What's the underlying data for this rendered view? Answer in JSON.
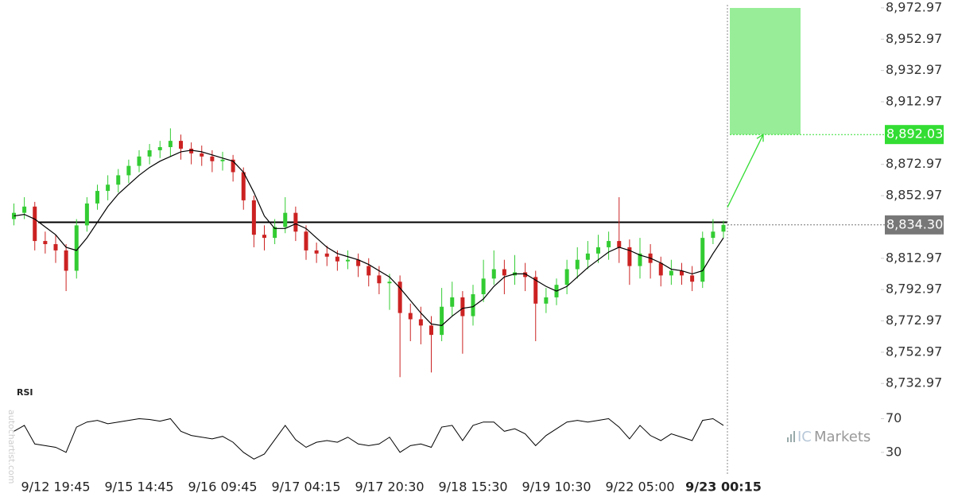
{
  "chart_data": {
    "type": "candlestick",
    "categories": [
      null,
      null,
      null,
      null,
      "9/12 19:45",
      null,
      null,
      null,
      null,
      null,
      null,
      null,
      "9/15 14:45",
      null,
      null,
      null,
      null,
      null,
      null,
      null,
      "9/16 09:45",
      null,
      null,
      null,
      null,
      null,
      null,
      null,
      "9/17 04:15",
      null,
      null,
      null,
      null,
      null,
      null,
      null,
      "9/17 20:30",
      null,
      null,
      null,
      null,
      null,
      null,
      null,
      "9/18 15:30",
      null,
      null,
      null,
      null,
      null,
      null,
      null,
      "9/19 10:30",
      null,
      null,
      null,
      null,
      null,
      null,
      null,
      "9/22 05:00",
      null,
      null,
      null,
      null,
      null,
      null,
      null,
      "9/23 00:15"
    ],
    "open": [
      8838,
      8842,
      8846,
      8824,
      8822,
      8818,
      8805,
      8834,
      8848,
      8856,
      8860,
      8866,
      8872,
      8878,
      8882,
      8884,
      8888,
      8883,
      8880,
      8878,
      8875,
      8876,
      8868,
      8850,
      8828,
      8826,
      8833,
      8842,
      8830,
      8818,
      8816,
      8814,
      8811,
      8812,
      8808,
      8802,
      8797,
      8798,
      8778,
      8774,
      8770,
      8764,
      8782,
      8788,
      8776,
      8790,
      8800,
      8806,
      8802,
      8804,
      8801,
      8784,
      8788,
      8796,
      8806,
      8812,
      8816,
      8820,
      8824,
      8820,
      8808,
      8816,
      8810,
      8802,
      8805,
      8802,
      8798,
      8826,
      8830
    ],
    "high": [
      8848,
      8852,
      8849,
      8830,
      8828,
      8822,
      8838,
      8852,
      8860,
      8866,
      8870,
      8876,
      8882,
      8886,
      8888,
      8896,
      8892,
      8887,
      8885,
      8882,
      8881,
      8879,
      8871,
      8853,
      8834,
      8838,
      8852,
      8846,
      8834,
      8823,
      8821,
      8818,
      8818,
      8816,
      8813,
      8808,
      8803,
      8802,
      8784,
      8782,
      8776,
      8794,
      8798,
      8792,
      8796,
      8812,
      8818,
      8812,
      8815,
      8810,
      8805,
      8794,
      8800,
      8812,
      8820,
      8824,
      8828,
      8830,
      8852,
      8825,
      8826,
      8822,
      8814,
      8812,
      8810,
      8808,
      8830,
      8838,
      8837
    ],
    "low": [
      8834,
      8838,
      8818,
      8816,
      8810,
      8792,
      8800,
      8830,
      8844,
      8850,
      8855,
      8861,
      8868,
      8873,
      8877,
      8878,
      8876,
      8873,
      8872,
      8868,
      8869,
      8862,
      8844,
      8820,
      8818,
      8822,
      8829,
      8824,
      8812,
      8810,
      8808,
      8805,
      8806,
      8801,
      8795,
      8790,
      8780,
      8737,
      8760,
      8758,
      8740,
      8760,
      8776,
      8752,
      8770,
      8785,
      8796,
      8790,
      8796,
      8792,
      8760,
      8778,
      8783,
      8790,
      8800,
      8806,
      8810,
      8812,
      8810,
      8796,
      8800,
      8800,
      8795,
      8796,
      8796,
      8792,
      8794,
      8822,
      8826
    ],
    "close": [
      8842,
      8846,
      8824,
      8822,
      8818,
      8805,
      8834,
      8848,
      8856,
      8860,
      8866,
      8872,
      8878,
      8882,
      8884,
      8888,
      8883,
      8880,
      8878,
      8875,
      8876,
      8868,
      8850,
      8828,
      8826,
      8833,
      8842,
      8830,
      8818,
      8816,
      8814,
      8811,
      8812,
      8808,
      8802,
      8797,
      8798,
      8778,
      8774,
      8770,
      8764,
      8782,
      8788,
      8776,
      8790,
      8800,
      8806,
      8802,
      8804,
      8801,
      8784,
      8788,
      8796,
      8806,
      8812,
      8816,
      8820,
      8824,
      8820,
      8808,
      8816,
      8810,
      8802,
      8805,
      8802,
      8798,
      8826,
      8830,
      8834.3
    ],
    "up_color": "#33cc33",
    "down_color": "#cc2222",
    "sma": {
      "color": "#000000",
      "values": [
        8840,
        8841,
        8838,
        8833,
        8828,
        8820,
        8818,
        8826,
        8836,
        8846,
        8854,
        8860,
        8866,
        8871,
        8875,
        8878,
        8881,
        8882,
        8881,
        8879,
        8877,
        8875,
        8868,
        8855,
        8840,
        8832,
        8832,
        8835,
        8832,
        8826,
        8820,
        8816,
        8814,
        8812,
        8809,
        8805,
        8801,
        8794,
        8786,
        8778,
        8771,
        8770,
        8776,
        8781,
        8782,
        8787,
        8795,
        8801,
        8803,
        8803,
        8799,
        8795,
        8792,
        8795,
        8801,
        8807,
        8812,
        8817,
        8820,
        8818,
        8815,
        8813,
        8810,
        8806,
        8805,
        8803,
        8805,
        8816,
        8826
      ]
    },
    "ylim": [
      8728,
      8978
    ],
    "yticks": [
      {
        "value": 8972.97,
        "label": "8,972.97"
      },
      {
        "value": 8952.97,
        "label": "8,952.97"
      },
      {
        "value": 8932.97,
        "label": "8,932.97"
      },
      {
        "value": 8912.97,
        "label": "8,912.97"
      },
      {
        "value": 8872.97,
        "label": "8,872.97"
      },
      {
        "value": 8852.97,
        "label": "8,852.97"
      },
      {
        "value": 8812.97,
        "label": "8,812.97"
      },
      {
        "value": 8792.97,
        "label": "8,792.97"
      },
      {
        "value": 8772.97,
        "label": "8,772.97"
      },
      {
        "value": 8752.97,
        "label": "8,752.97"
      },
      {
        "value": 8732.97,
        "label": "8,732.97"
      }
    ],
    "level": {
      "value": 8836,
      "color": "#000000"
    },
    "current_price": {
      "value": 8834.3,
      "label": "8,834.30",
      "color": "#777777"
    },
    "target": {
      "value": 8892.03,
      "label": "8,892.03",
      "color": "#33dd33",
      "zone_color": "#98ee98"
    },
    "rsi": {
      "title": "RSI",
      "color": "#000000",
      "ylim": [
        10,
        95
      ],
      "yticks": [
        70,
        30
      ],
      "values": [
        55,
        62,
        40,
        38,
        36,
        30,
        60,
        66,
        68,
        64,
        66,
        68,
        70,
        69,
        67,
        70,
        55,
        50,
        48,
        46,
        49,
        42,
        30,
        22,
        28,
        45,
        62,
        45,
        36,
        42,
        44,
        42,
        48,
        40,
        38,
        40,
        48,
        30,
        38,
        40,
        36,
        60,
        62,
        44,
        62,
        66,
        66,
        55,
        58,
        52,
        38,
        50,
        58,
        66,
        68,
        66,
        68,
        70,
        60,
        46,
        62,
        50,
        44,
        52,
        48,
        44,
        68,
        70,
        62
      ]
    },
    "watermark": "autochartist.com",
    "brand": {
      "prefix": "IC",
      "name": "Markets"
    }
  }
}
